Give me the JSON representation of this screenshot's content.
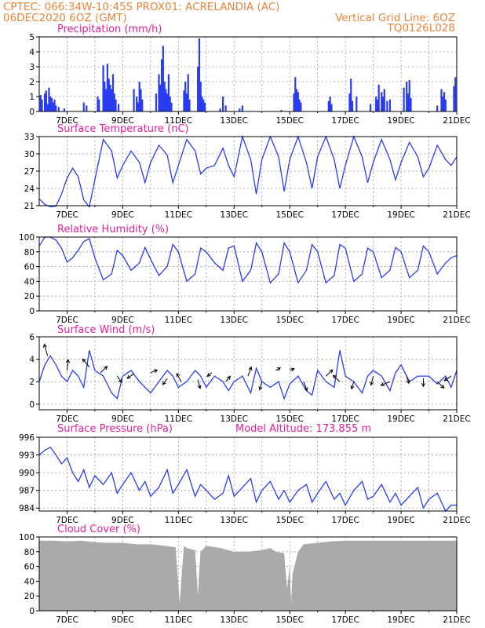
{
  "header": {
    "left_line1": "CPTEC:   066:34W-10:45S   PROX01: ACRELANDIA (AC)",
    "left_line2": "06DEC2020 6OZ (GMT)",
    "right_line2": "Vertical Grid Line: 6OZ",
    "right_line3": "TQ0126L028"
  },
  "model_altitude_label": "Model Altitude: 173.855  m",
  "colors": {
    "series": "#2a3cf0",
    "cloud": "#aaaaaa",
    "title": "#e0209a",
    "header": "#e8843a"
  },
  "chart_data": [
    {
      "id": "precip",
      "type": "bar",
      "title": "Precipitation (mm/h)",
      "x_ticks": [
        "7DEC",
        "9DEC",
        "11DEC",
        "13DEC",
        "15DEC",
        "17DEC",
        "19DEC",
        "21DEC"
      ],
      "xlim_days": [
        6.0,
        21.0
      ],
      "ylim": [
        0,
        5
      ],
      "y_ticks": [
        "0",
        "1",
        "2",
        "3",
        "4",
        "5"
      ],
      "x_days": [
        6.05,
        6.1,
        6.2,
        6.25,
        6.3,
        6.35,
        6.4,
        6.45,
        6.5,
        6.55,
        6.6,
        6.7,
        6.9,
        7.6,
        7.7,
        8.1,
        8.15,
        8.3,
        8.35,
        8.4,
        8.45,
        8.5,
        8.55,
        8.6,
        8.65,
        8.7,
        8.75,
        8.85,
        9.4,
        9.5,
        9.55,
        9.6,
        9.65,
        9.7,
        10.2,
        10.3,
        10.35,
        10.4,
        10.45,
        10.5,
        10.55,
        10.6,
        10.65,
        10.7,
        10.75,
        11.2,
        11.25,
        11.3,
        11.35,
        11.4,
        11.7,
        11.75,
        11.8,
        11.85,
        11.9,
        11.95,
        12.5,
        12.6,
        12.7,
        13.2,
        13.3,
        14.7,
        15.15,
        15.2,
        15.25,
        15.3,
        15.35,
        15.4,
        16.4,
        16.45,
        16.5,
        17.15,
        17.2,
        17.25,
        17.4,
        17.9,
        18.1,
        18.15,
        18.2,
        18.3,
        18.35,
        18.4,
        18.5,
        18.6,
        19.1,
        19.2,
        19.25,
        19.3,
        19.35,
        20.3,
        20.45,
        20.5,
        20.55,
        20.6,
        20.9,
        20.95
      ],
      "values": [
        1.1,
        0.8,
        1.2,
        1.4,
        0.5,
        1.6,
        1.0,
        0.9,
        0.6,
        0.8,
        0.4,
        0.3,
        0.2,
        0.6,
        0.4,
        1.0,
        0.8,
        3.1,
        2.0,
        1.5,
        3.2,
        2.2,
        1.8,
        1.5,
        2.5,
        1.2,
        0.8,
        0.5,
        1.5,
        1.0,
        0.6,
        2.0,
        1.5,
        0.8,
        1.2,
        2.5,
        1.8,
        3.5,
        4.4,
        2.0,
        1.5,
        1.2,
        2.5,
        1.0,
        0.6,
        1.4,
        2.0,
        1.2,
        2.5,
        0.8,
        3.0,
        4.9,
        2.0,
        1.0,
        0.8,
        0.6,
        0.2,
        1.0,
        0.4,
        0.2,
        0.4,
        0.1,
        1.2,
        2.3,
        1.5,
        1.3,
        0.8,
        0.6,
        0.7,
        1.0,
        0.5,
        1.2,
        2.2,
        0.7,
        1.0,
        0.5,
        1.0,
        0.8,
        1.8,
        1.3,
        1.0,
        1.5,
        0.7,
        0.8,
        1.6,
        2.0,
        1.2,
        2.1,
        0.9,
        0.4,
        1.5,
        1.0,
        1.3,
        0.8,
        1.7,
        2.3
      ]
    },
    {
      "id": "temp",
      "type": "line",
      "title": "Surface Temperature (nC)",
      "x_ticks": [
        "7DEC",
        "9DEC",
        "11DEC",
        "13DEC",
        "15DEC",
        "17DEC",
        "19DEC",
        "21DEC"
      ],
      "xlim_days": [
        6.0,
        21.0
      ],
      "ylim": [
        21,
        33
      ],
      "y_ticks": [
        "21",
        "24",
        "27",
        "30",
        "33"
      ],
      "x_days": [
        6.0,
        6.2,
        6.4,
        6.6,
        6.8,
        7.0,
        7.2,
        7.4,
        7.6,
        7.8,
        8.0,
        8.3,
        8.6,
        8.8,
        9.0,
        9.3,
        9.6,
        9.8,
        10.0,
        10.3,
        10.6,
        10.8,
        11.0,
        11.3,
        11.6,
        11.8,
        12.0,
        12.3,
        12.6,
        12.8,
        13.0,
        13.3,
        13.6,
        13.8,
        14.0,
        14.3,
        14.6,
        14.8,
        15.0,
        15.3,
        15.6,
        15.8,
        16.0,
        16.3,
        16.6,
        16.8,
        17.0,
        17.3,
        17.6,
        17.8,
        18.0,
        18.3,
        18.6,
        18.8,
        19.0,
        19.3,
        19.6,
        19.8,
        20.0,
        20.3,
        20.6,
        20.8,
        21.0
      ],
      "values": [
        22.2,
        21.2,
        20.8,
        20.9,
        23.0,
        25.8,
        27.5,
        26.0,
        22.0,
        20.8,
        25.5,
        32.5,
        30.5,
        25.8,
        28.0,
        30.5,
        28.5,
        25.0,
        28.5,
        31.5,
        29.8,
        25.0,
        28.0,
        32.5,
        30.5,
        26.5,
        27.5,
        28.0,
        31.0,
        28.0,
        26.0,
        33.0,
        29.0,
        23.0,
        29.0,
        33.0,
        29.5,
        23.5,
        29.0,
        33.0,
        28.5,
        24.0,
        29.5,
        33.0,
        29.0,
        24.0,
        28.0,
        33.0,
        29.5,
        25.0,
        28.5,
        32.5,
        29.0,
        25.5,
        28.5,
        32.0,
        29.5,
        26.0,
        27.5,
        31.5,
        29.0,
        28.0,
        29.5
      ]
    },
    {
      "id": "rh",
      "type": "line",
      "title": "Relative Humidity (%)",
      "x_ticks": [
        "7DEC",
        "9DEC",
        "11DEC",
        "13DEC",
        "15DEC",
        "17DEC",
        "19DEC",
        "21DEC"
      ],
      "xlim_days": [
        6.0,
        21.0
      ],
      "ylim": [
        0,
        100
      ],
      "y_ticks": [
        "0",
        "20",
        "40",
        "60",
        "80",
        "100"
      ],
      "x_days": [
        6.0,
        6.2,
        6.4,
        6.6,
        6.8,
        7.0,
        7.2,
        7.4,
        7.6,
        7.8,
        8.0,
        8.3,
        8.6,
        8.8,
        9.0,
        9.3,
        9.6,
        9.8,
        10.0,
        10.3,
        10.6,
        10.8,
        11.0,
        11.3,
        11.6,
        11.8,
        12.0,
        12.3,
        12.6,
        12.8,
        13.0,
        13.3,
        13.6,
        13.8,
        14.0,
        14.3,
        14.6,
        14.8,
        15.0,
        15.3,
        15.6,
        15.8,
        16.0,
        16.3,
        16.6,
        16.8,
        17.0,
        17.3,
        17.6,
        17.8,
        18.0,
        18.3,
        18.6,
        18.8,
        19.0,
        19.3,
        19.6,
        19.8,
        20.0,
        20.3,
        20.6,
        20.8,
        21.0
      ],
      "values": [
        88,
        100,
        100,
        96,
        85,
        66,
        72,
        82,
        94,
        98,
        72,
        42,
        50,
        82,
        75,
        55,
        65,
        86,
        70,
        48,
        60,
        90,
        80,
        40,
        50,
        85,
        80,
        65,
        55,
        85,
        88,
        40,
        55,
        92,
        80,
        38,
        50,
        92,
        80,
        38,
        55,
        90,
        80,
        38,
        48,
        90,
        85,
        40,
        50,
        85,
        80,
        45,
        55,
        86,
        80,
        45,
        55,
        88,
        80,
        50,
        65,
        72,
        75
      ]
    },
    {
      "id": "wind",
      "type": "line",
      "title": "Surface Wind (m/s)",
      "x_ticks": [
        "7DEC",
        "9DEC",
        "11DEC",
        "13DEC",
        "15DEC",
        "17DEC",
        "19DEC",
        "21DEC"
      ],
      "xlim_days": [
        6.0,
        21.0
      ],
      "ylim": [
        -0.5,
        6
      ],
      "y_ticks": [
        "0",
        "2",
        "4",
        "6"
      ],
      "x_days": [
        6.0,
        6.2,
        6.4,
        6.6,
        6.8,
        7.0,
        7.2,
        7.4,
        7.6,
        7.8,
        8.0,
        8.3,
        8.6,
        8.8,
        9.0,
        9.3,
        9.6,
        9.8,
        10.0,
        10.3,
        10.6,
        10.8,
        11.0,
        11.3,
        11.6,
        11.8,
        12.0,
        12.3,
        12.6,
        12.8,
        13.0,
        13.3,
        13.6,
        13.8,
        14.0,
        14.3,
        14.6,
        14.8,
        15.0,
        15.3,
        15.6,
        15.8,
        16.0,
        16.3,
        16.6,
        16.8,
        17.0,
        17.3,
        17.6,
        17.8,
        18.0,
        18.3,
        18.6,
        18.8,
        19.0,
        19.3,
        19.6,
        19.8,
        20.0,
        20.3,
        20.6,
        20.8,
        21.0
      ],
      "values": [
        2.0,
        3.5,
        4.3,
        3.5,
        2.5,
        2.0,
        3.0,
        2.5,
        1.5,
        4.8,
        3.0,
        2.5,
        1.0,
        0.5,
        2.5,
        3.0,
        2.0,
        1.5,
        1.0,
        2.0,
        3.0,
        2.5,
        1.5,
        2.0,
        3.0,
        2.5,
        1.5,
        2.5,
        2.0,
        1.2,
        2.0,
        2.5,
        1.0,
        3.2,
        2.0,
        1.5,
        2.0,
        0.5,
        1.8,
        2.5,
        1.2,
        0.8,
        3.0,
        2.0,
        1.5,
        4.8,
        2.5,
        2.0,
        1.0,
        2.5,
        3.0,
        2.5,
        1.2,
        2.8,
        3.5,
        2.0,
        2.5,
        2.5,
        2.5,
        1.8,
        2.5,
        1.5,
        3.0
      ],
      "arrows": [
        {
          "x": 6.3,
          "y": 4.3,
          "dx": -0.15,
          "dy": 1.3
        },
        {
          "x": 7.0,
          "y": 3.0,
          "dx": 0.05,
          "dy": 1.2
        },
        {
          "x": 7.8,
          "y": 3.3,
          "dx": -0.3,
          "dy": 0.9
        },
        {
          "x": 8.2,
          "y": 2.8,
          "dx": 0.3,
          "dy": 0.7
        },
        {
          "x": 8.8,
          "y": 2.5,
          "dx": 0.2,
          "dy": -0.7
        },
        {
          "x": 9.4,
          "y": 2.7,
          "dx": -0.3,
          "dy": -0.5
        },
        {
          "x": 10.0,
          "y": 2.8,
          "dx": 0.3,
          "dy": 0.3
        },
        {
          "x": 10.6,
          "y": 2.3,
          "dx": -0.2,
          "dy": -0.7
        },
        {
          "x": 11.1,
          "y": 2.0,
          "dx": -0.2,
          "dy": 0.9
        },
        {
          "x": 11.7,
          "y": 2.2,
          "dx": 0.1,
          "dy": -1.0
        },
        {
          "x": 12.2,
          "y": 2.8,
          "dx": -0.2,
          "dy": -0.4
        },
        {
          "x": 12.7,
          "y": 2.0,
          "dx": 0.2,
          "dy": 0.6
        },
        {
          "x": 13.5,
          "y": 2.5,
          "dx": 0.15,
          "dy": 1.0
        },
        {
          "x": 14.0,
          "y": 2.0,
          "dx": -0.1,
          "dy": -0.9
        },
        {
          "x": 14.5,
          "y": 3.0,
          "dx": 0.2,
          "dy": 0.3
        },
        {
          "x": 15.0,
          "y": 3.0,
          "dx": 0.2,
          "dy": 0.2
        },
        {
          "x": 15.5,
          "y": 2.0,
          "dx": 0.15,
          "dy": -1.0
        },
        {
          "x": 16.3,
          "y": 2.5,
          "dx": 0.3,
          "dy": 0.7
        },
        {
          "x": 16.8,
          "y": 2.0,
          "dx": -0.3,
          "dy": 0.7
        },
        {
          "x": 17.3,
          "y": 2.0,
          "dx": -0.1,
          "dy": -0.8
        },
        {
          "x": 18.0,
          "y": 2.5,
          "dx": -0.1,
          "dy": -1.0
        },
        {
          "x": 18.6,
          "y": 2.0,
          "dx": -0.4,
          "dy": -0.4
        },
        {
          "x": 19.2,
          "y": 2.5,
          "dx": 0.1,
          "dy": -0.8
        },
        {
          "x": 19.8,
          "y": 2.3,
          "dx": 0.0,
          "dy": -0.9
        },
        {
          "x": 20.3,
          "y": 2.0,
          "dx": 0.3,
          "dy": -0.7
        },
        {
          "x": 20.8,
          "y": 2.5,
          "dx": -0.3,
          "dy": -0.5
        }
      ]
    },
    {
      "id": "pressure",
      "type": "line",
      "title": "Surface Pressure (hPa)",
      "x_ticks": [
        "7DEC",
        "9DEC",
        "11DEC",
        "13DEC",
        "15DEC",
        "17DEC",
        "19DEC",
        "21DEC"
      ],
      "xlim_days": [
        6.0,
        21.0
      ],
      "ylim": [
        983.5,
        996
      ],
      "y_ticks": [
        "984",
        "987",
        "990",
        "993",
        "996"
      ],
      "x_days": [
        6.0,
        6.2,
        6.4,
        6.6,
        6.8,
        7.0,
        7.2,
        7.4,
        7.6,
        7.8,
        8.0,
        8.3,
        8.6,
        8.8,
        9.0,
        9.3,
        9.6,
        9.8,
        10.0,
        10.3,
        10.6,
        10.8,
        11.0,
        11.3,
        11.6,
        11.8,
        12.0,
        12.3,
        12.6,
        12.8,
        13.0,
        13.3,
        13.6,
        13.8,
        14.0,
        14.3,
        14.6,
        14.8,
        15.0,
        15.3,
        15.6,
        15.8,
        16.0,
        16.3,
        16.6,
        16.8,
        17.0,
        17.3,
        17.6,
        17.8,
        18.0,
        18.3,
        18.6,
        18.8,
        19.0,
        19.3,
        19.6,
        19.8,
        20.0,
        20.3,
        20.6,
        20.8,
        21.0
      ],
      "values": [
        993.0,
        993.8,
        994.3,
        993.0,
        991.5,
        992.5,
        990.0,
        988.5,
        990.5,
        987.5,
        989.5,
        988.0,
        990.0,
        986.5,
        988.0,
        990.0,
        987.0,
        988.5,
        986.0,
        987.5,
        990.5,
        986.5,
        988.0,
        990.5,
        986.0,
        988.0,
        987.0,
        985.5,
        986.5,
        989.5,
        986.0,
        987.5,
        989.0,
        985.0,
        987.0,
        988.5,
        985.5,
        987.0,
        985.0,
        987.0,
        988.0,
        985.0,
        986.5,
        988.5,
        985.5,
        986.5,
        984.5,
        987.0,
        988.5,
        985.5,
        986.0,
        988.0,
        985.0,
        986.5,
        984.5,
        986.0,
        987.5,
        984.0,
        985.5,
        986.5,
        983.5,
        984.5,
        984.5
      ]
    },
    {
      "id": "cloud",
      "type": "area",
      "title": "Cloud Cover (%)",
      "x_ticks": [
        "7DEC",
        "9DEC",
        "11DEC",
        "13DEC",
        "15DEC",
        "17DEC",
        "19DEC",
        "21DEC"
      ],
      "xlim_days": [
        6.0,
        21.0
      ],
      "ylim": [
        0,
        100
      ],
      "y_ticks": [
        "0",
        "20",
        "40",
        "60",
        "80",
        "100"
      ],
      "x_days": [
        6.0,
        6.5,
        7.0,
        7.5,
        8.0,
        8.5,
        9.0,
        9.5,
        10.0,
        10.5,
        10.9,
        11.0,
        11.05,
        11.1,
        11.2,
        11.3,
        11.6,
        11.7,
        11.75,
        11.8,
        12.0,
        12.5,
        13.0,
        13.5,
        14.0,
        14.3,
        14.5,
        14.8,
        14.9,
        15.0,
        15.05,
        15.1,
        15.3,
        15.5,
        16.0,
        16.5,
        17.0,
        17.5,
        18.0,
        18.5,
        19.0,
        19.5,
        20.0,
        20.5,
        21.0
      ],
      "values": [
        95,
        95,
        94,
        95,
        93,
        92,
        92,
        90,
        90,
        88,
        86,
        35,
        10,
        40,
        88,
        85,
        82,
        20,
        55,
        80,
        88,
        85,
        80,
        80,
        82,
        85,
        80,
        78,
        30,
        60,
        10,
        50,
        80,
        90,
        92,
        94,
        95,
        95,
        95,
        95,
        95,
        95,
        95,
        95,
        95
      ]
    }
  ]
}
